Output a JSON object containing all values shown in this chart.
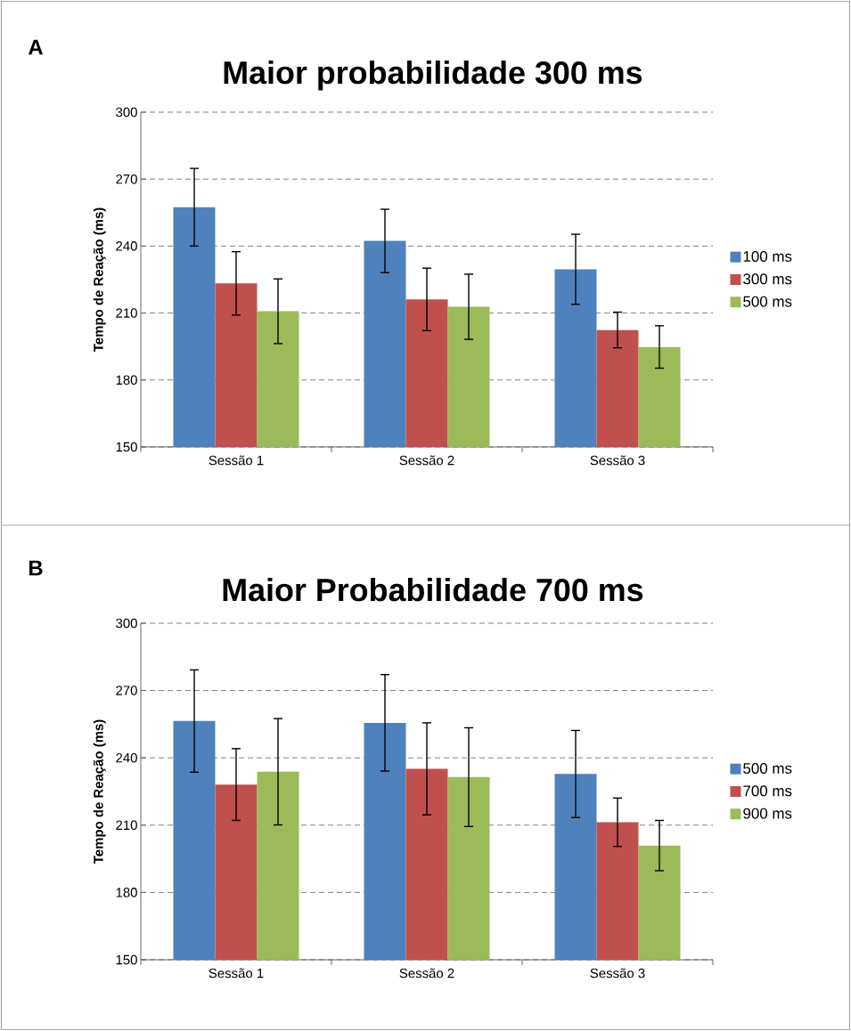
{
  "chart_data": [
    {
      "type": "bar",
      "title": "Maior probabilidade 300 ms",
      "ylabel": "Tempo de Reação (ms)",
      "annotations": [
        "A"
      ],
      "categories": [
        "Sessão 1",
        "Sessão 2",
        "Sessão 3"
      ],
      "series": [
        {
          "name": "100 ms",
          "color": "#4f81bd",
          "values": [
            257.4,
            242.3,
            229.6
          ],
          "errors": [
            17.4,
            14.2,
            15.7
          ]
        },
        {
          "name": "300 ms",
          "color": "#c0504d",
          "values": [
            223.3,
            216.1,
            202.4
          ],
          "errors": [
            14.2,
            14.0,
            8.0
          ]
        },
        {
          "name": "500 ms",
          "color": "#9bbb59",
          "values": [
            210.8,
            212.8,
            194.8
          ],
          "errors": [
            14.5,
            14.6,
            9.5
          ]
        }
      ],
      "ylim": [
        150,
        300
      ],
      "yticks": [
        150,
        180,
        210,
        240,
        270,
        300
      ],
      "grid": "y",
      "legend": "right"
    },
    {
      "type": "bar",
      "title": "Maior Probabilidade 700 ms",
      "ylabel": "Tempo de Reação (ms)",
      "annotations": [
        "B"
      ],
      "categories": [
        "Sessão 1",
        "Sessão 2",
        "Sessão 3"
      ],
      "series": [
        {
          "name": "500 ms",
          "color": "#4f81bd",
          "values": [
            256.4,
            255.6,
            232.8
          ],
          "errors": [
            22.8,
            21.5,
            19.4
          ]
        },
        {
          "name": "700 ms",
          "color": "#c0504d",
          "values": [
            228.1,
            235.1,
            211.3
          ],
          "errors": [
            16.0,
            20.5,
            10.8
          ]
        },
        {
          "name": "900 ms",
          "color": "#9bbb59",
          "values": [
            233.8,
            231.4,
            200.9
          ],
          "errors": [
            23.7,
            22.0,
            11.2
          ]
        }
      ],
      "ylim": [
        150,
        300
      ],
      "yticks": [
        150,
        180,
        210,
        240,
        270,
        300
      ],
      "grid": "y",
      "legend": "right"
    }
  ]
}
